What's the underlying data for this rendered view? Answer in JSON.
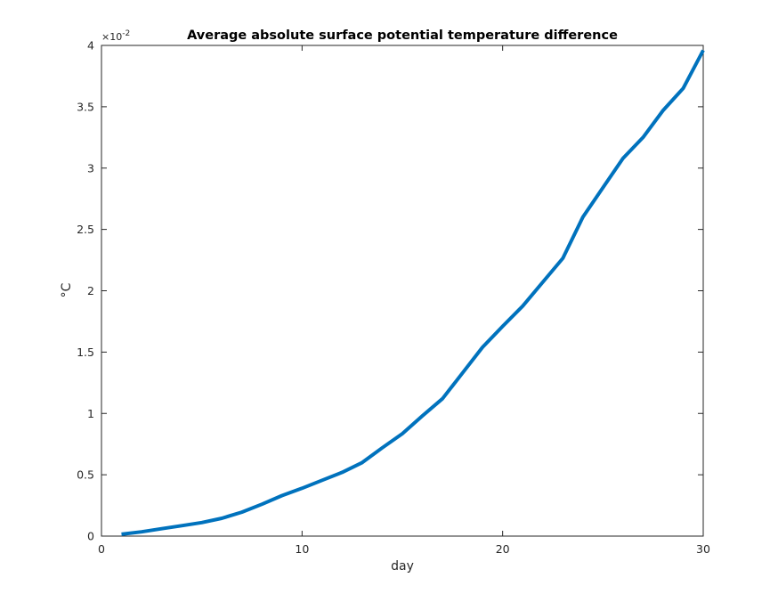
{
  "chart_data": {
    "type": "line",
    "title": "Average absolute surface potential temperature difference",
    "xlabel": "day",
    "ylabel": "°C",
    "y_exponent_prefix": "×10",
    "y_exponent_power": "-2",
    "xlim": [
      0,
      30
    ],
    "ylim": [
      0,
      4
    ],
    "x_ticks": [
      "0",
      "10",
      "20",
      "30"
    ],
    "y_ticks": [
      "0",
      "0.5",
      "1",
      "1.5",
      "2",
      "2.5",
      "3",
      "3.5",
      "4"
    ],
    "grid": false,
    "series": [
      {
        "color": "#0072bd",
        "x": [
          1,
          2,
          3,
          4,
          5,
          6,
          7,
          8,
          9,
          10,
          11,
          12,
          13,
          14,
          15,
          16,
          17,
          18,
          19,
          20,
          21,
          22,
          23,
          24,
          25,
          26,
          27,
          28,
          29,
          30
        ],
        "y": [
          0.015,
          0.035,
          0.06,
          0.085,
          0.11,
          0.145,
          0.195,
          0.26,
          0.33,
          0.39,
          0.455,
          0.52,
          0.6,
          0.72,
          0.835,
          0.98,
          1.12,
          1.33,
          1.54,
          1.71,
          1.875,
          2.07,
          2.265,
          2.6,
          2.84,
          3.08,
          3.25,
          3.47,
          3.65,
          3.96
        ]
      }
    ]
  }
}
